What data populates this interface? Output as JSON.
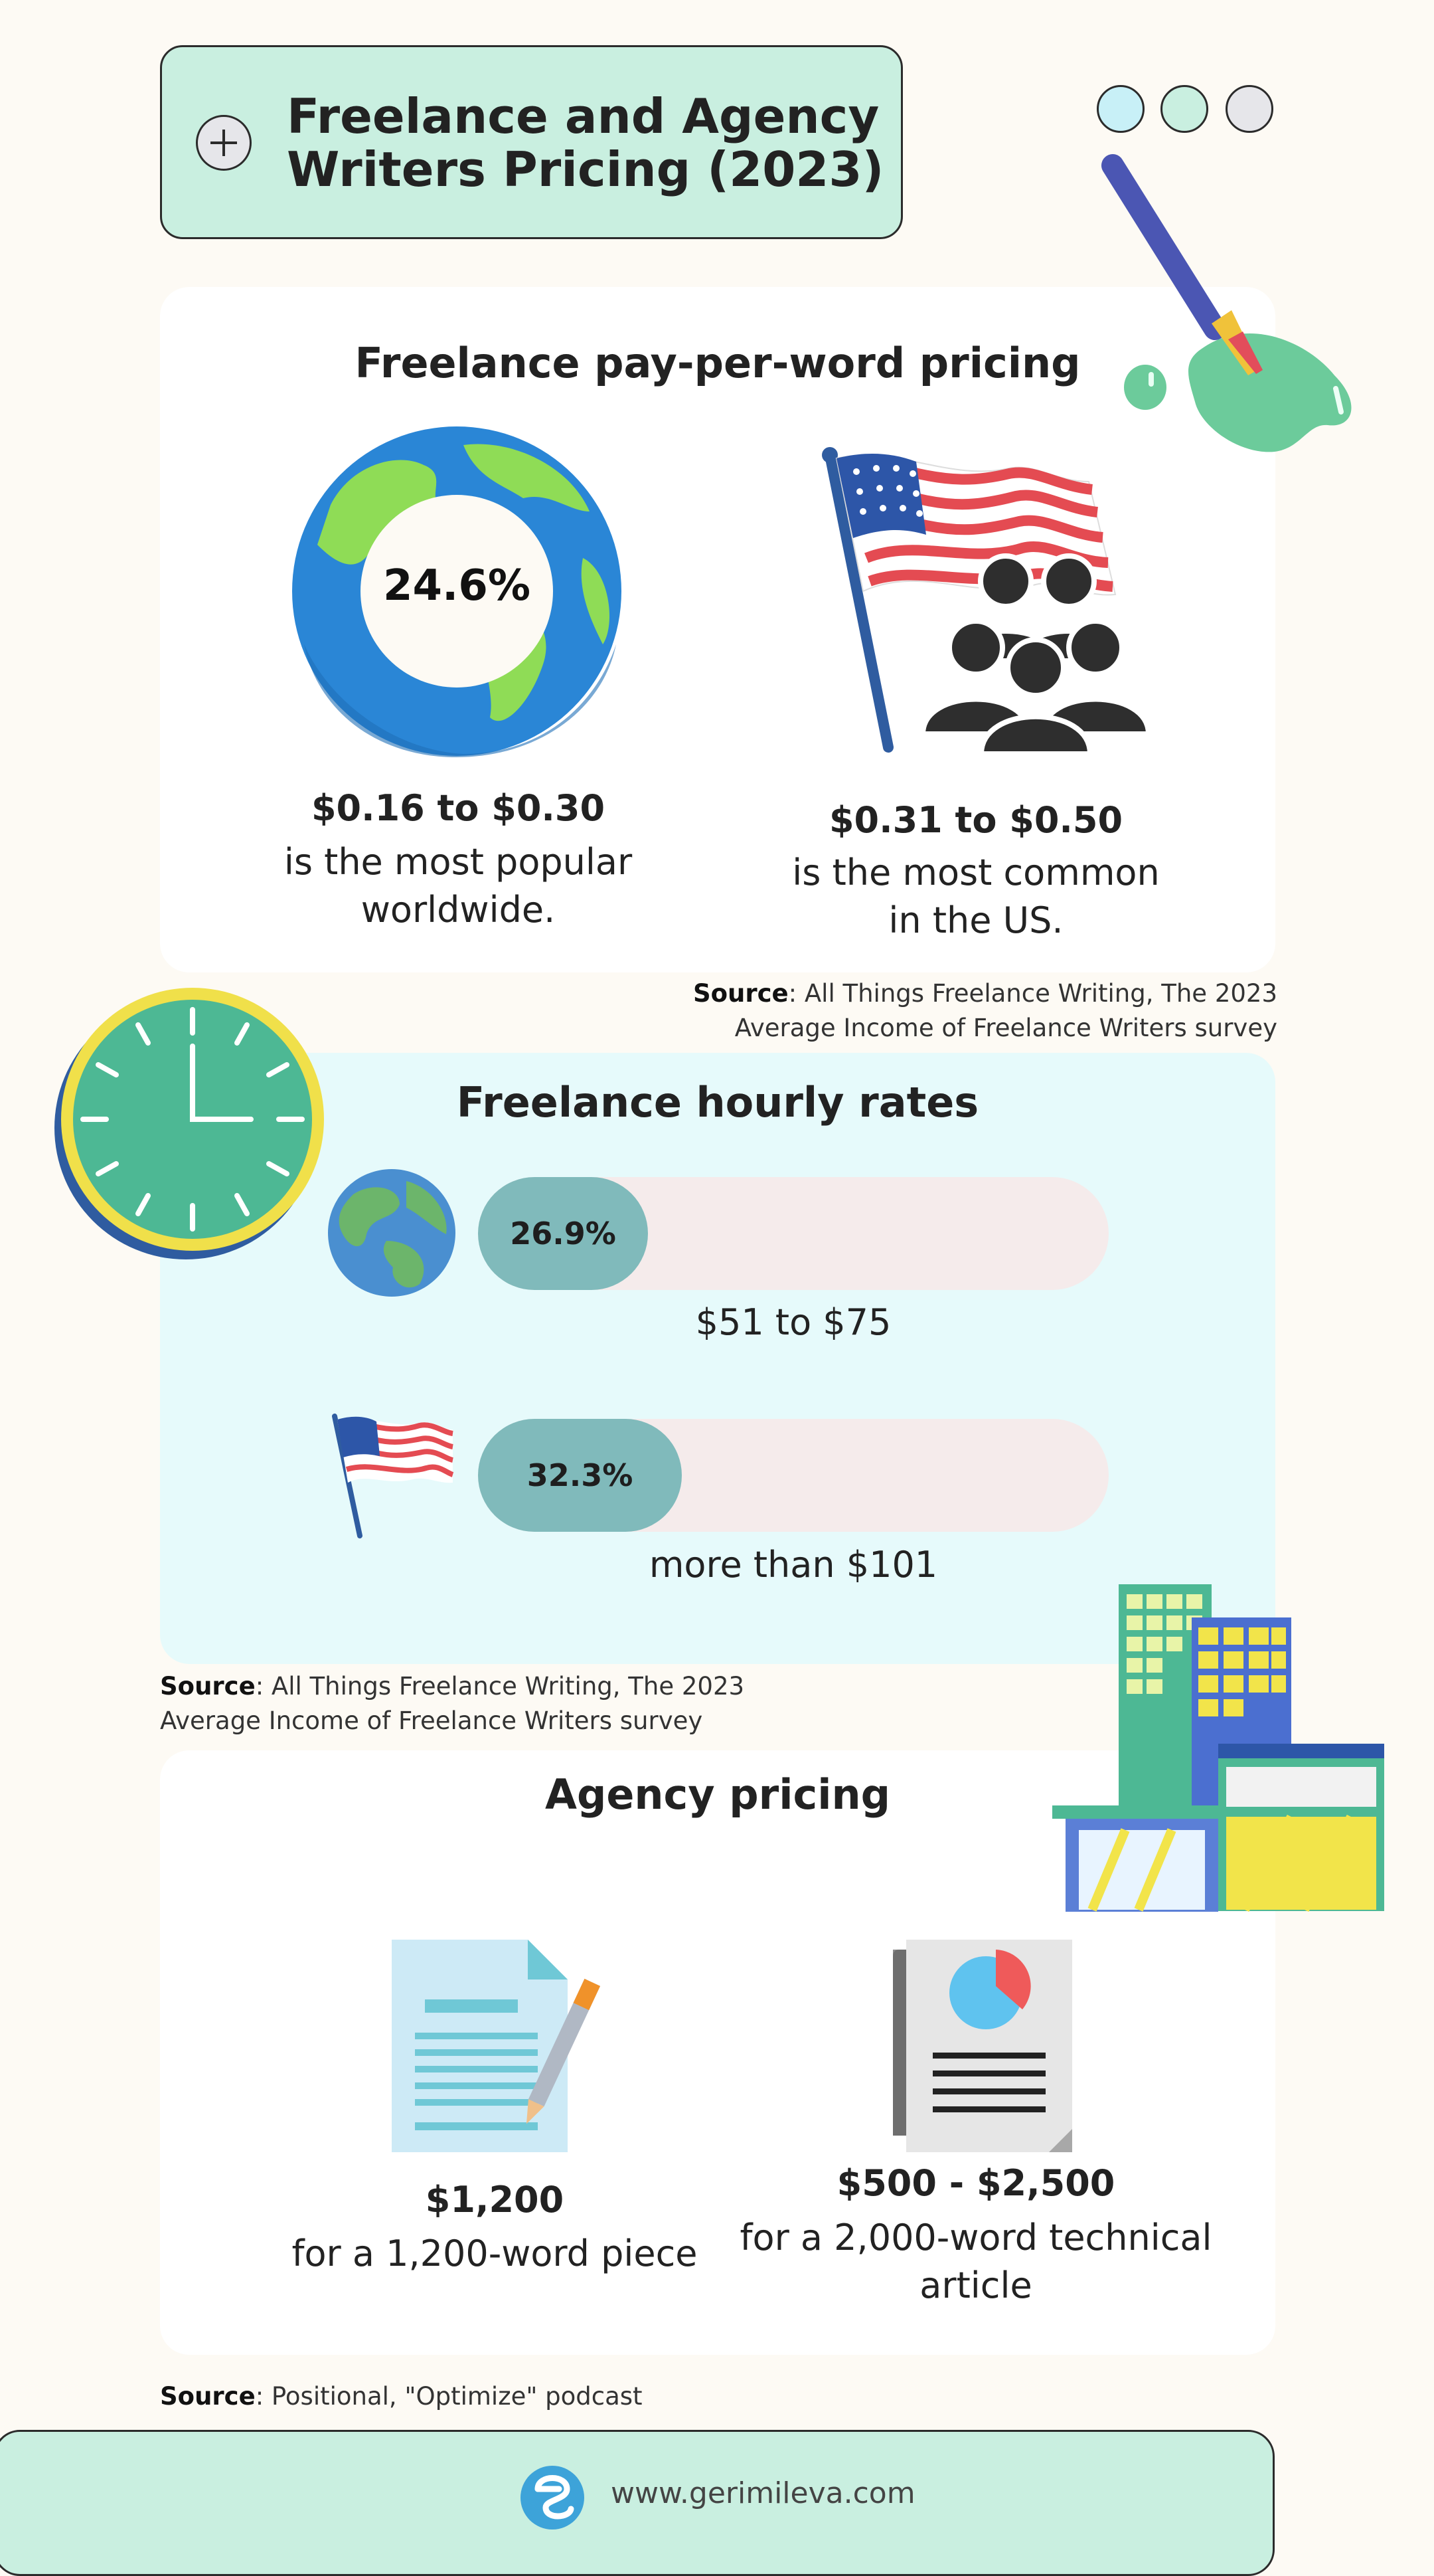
{
  "header": {
    "title_line1": "Freelance and Agency",
    "title_line2": "Writers Pricing (2023)"
  },
  "colors": {
    "mint": "#c9efe0",
    "light_blue_card": "#e6fafb",
    "bar_fill": "#80babb",
    "bar_track": "#f5ebeb",
    "dot_colors": [
      "#c8f0f7",
      "#c9efe0",
      "#e6e6ea"
    ]
  },
  "per_word": {
    "heading": "Freelance pay-per-word pricing",
    "world_percent": "24.6%",
    "world_percent_value": 24.6,
    "world_price": "$0.16 to $0.30",
    "world_caption_line1": "is the most popular",
    "world_caption_line2": "worldwide.",
    "us_price": "$0.31 to $0.50",
    "us_caption_line1": "is the most common",
    "us_caption_line2": "in the US.",
    "source_label": "Source",
    "source_line1": ": All Things Freelance Writing, The 2023",
    "source_line2": "Average Income of Freelance Writers survey"
  },
  "hourly": {
    "heading": "Freelance hourly rates",
    "rows": [
      {
        "percent": "26.9%",
        "value": 26.9,
        "range": "$51 to $75",
        "icon": "earth-globe-icon"
      },
      {
        "percent": "32.3%",
        "value": 32.3,
        "range": "more than $101",
        "icon": "us-flag-icon"
      }
    ],
    "source_label": "Source",
    "source_line1": ": All Things Freelance Writing, The 2023",
    "source_line2": "Average Income of Freelance Writers survey"
  },
  "agency": {
    "heading": "Agency pricing",
    "left_price": "$1,200",
    "left_caption": "for a 1,200-word piece",
    "right_price": "$500 - $2,500",
    "right_caption_line1": "for a 2,000-word technical",
    "right_caption_line2": "article",
    "source_label": "Source",
    "source_text": ": Positional, \"Optimize\" podcast"
  },
  "footer": {
    "url": "www.gerimileva.com"
  }
}
